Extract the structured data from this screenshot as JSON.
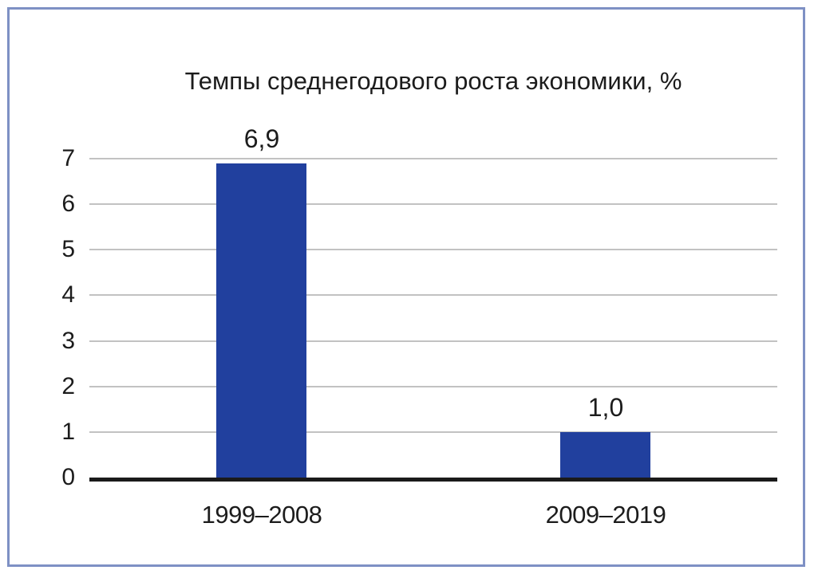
{
  "figure": {
    "background_color": "#ffffff",
    "border_color": "#7e90c4"
  },
  "chart_data": {
    "type": "bar",
    "title": "Темпы среднегодового роста экономики, %",
    "categories": [
      "1999–2008",
      "2009–2019"
    ],
    "values": [
      6.9,
      1.0
    ],
    "value_labels": [
      "6,9",
      "1,0"
    ],
    "xlabel": "",
    "ylabel": "",
    "ylim": [
      0,
      7
    ],
    "yticks": [
      0,
      1,
      2,
      3,
      4,
      5,
      6,
      7
    ],
    "grid": "horizontal",
    "legend": "none",
    "bar_color": "#21409e",
    "gridline_color": "#c2c2c2",
    "axis_color": "#1a1a1a",
    "text_color": "#1c1c1c"
  }
}
